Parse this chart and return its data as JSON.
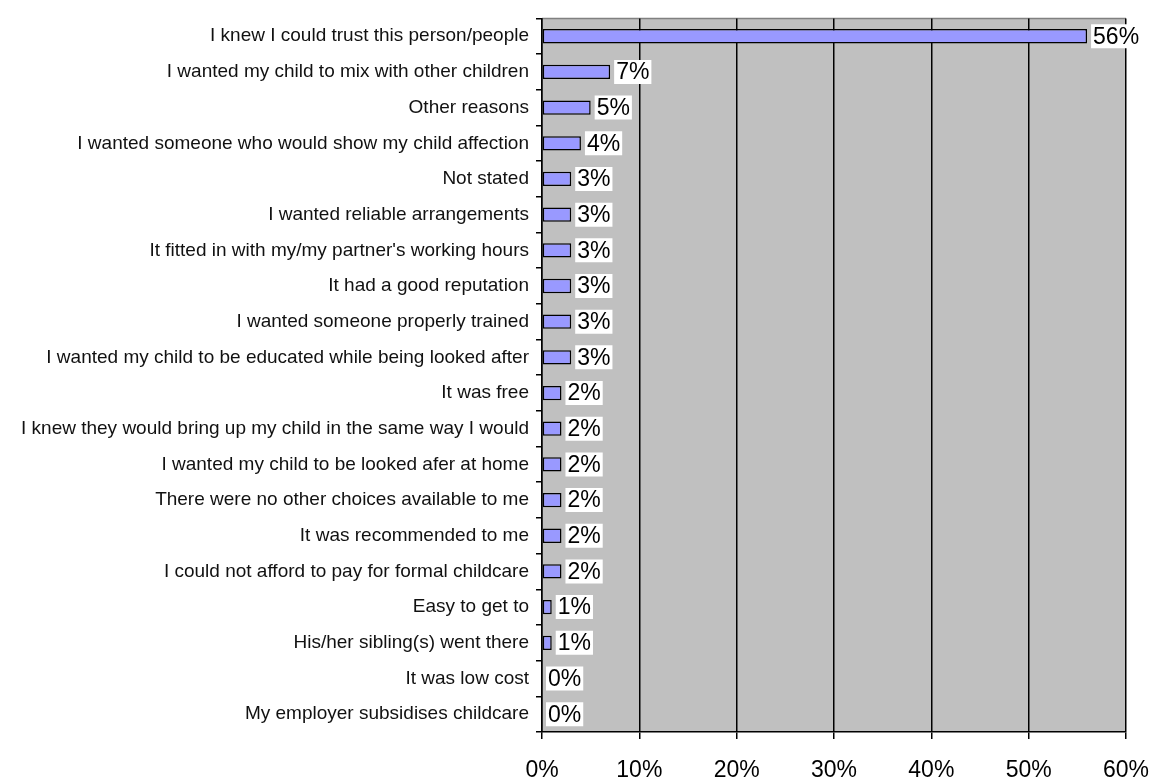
{
  "chart_data": {
    "type": "bar",
    "orientation": "horizontal",
    "categories": [
      "I knew I could trust this person/people",
      "I wanted my child to mix with other children",
      "Other reasons",
      "I wanted someone who would show my child affection",
      "Not stated",
      "I wanted reliable arrangements",
      "It fitted in with my/my partner's working hours",
      "It had a good reputation",
      "I wanted someone properly trained",
      "I wanted my child to be educated while being looked after",
      "It was free",
      "I knew they would bring up my child in the same way I would",
      "I wanted my child to be looked afer at home",
      "There were no other choices available to me",
      "It was recommended to me",
      "I could not afford to pay for formal childcare",
      "Easy to get to",
      "His/her sibling(s) went there",
      "It was low cost",
      "My employer subsidises childcare"
    ],
    "values": [
      56,
      7,
      5,
      4,
      3,
      3,
      3,
      3,
      3,
      3,
      2,
      2,
      2,
      2,
      2,
      2,
      1,
      1,
      0,
      0
    ],
    "color": "#9999ff",
    "value_labels": [
      "56%",
      "7%",
      "5%",
      "4%",
      "3%",
      "3%",
      "3%",
      "3%",
      "3%",
      "3%",
      "2%",
      "2%",
      "2%",
      "2%",
      "2%",
      "2%",
      "1%",
      "1%",
      "0%",
      "0%"
    ],
    "xlim": [
      0,
      60
    ],
    "xticks": [
      {
        "value": 0,
        "label": "0%"
      },
      {
        "value": 10,
        "label": "10%"
      },
      {
        "value": 20,
        "label": "20%"
      },
      {
        "value": 30,
        "label": "30%"
      },
      {
        "value": 40,
        "label": "40%"
      },
      {
        "value": 50,
        "label": "50%"
      },
      {
        "value": 60,
        "label": "60%"
      }
    ],
    "grid": "x"
  }
}
